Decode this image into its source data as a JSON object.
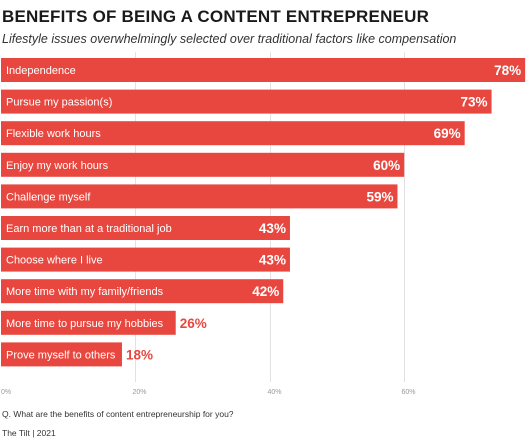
{
  "title": "BENEFITS OF BEING A CONTENT ENTREPRENEUR",
  "subtitle": "Lifestyle issues overwhelmingly selected over traditional factors like compensation",
  "question": "Q. What are the benefits of content entrepreneurship for you?",
  "source": "The Tilt | 2021",
  "colors": {
    "bar": "#e8473f",
    "label_inside": "#ffffff",
    "label_outside": "#e8473f",
    "grid": "#e2e2e2"
  },
  "chart_data": {
    "type": "bar",
    "orientation": "horizontal",
    "categories": [
      "Independence",
      "Pursue my passion(s)",
      "Flexible work hours",
      "Enjoy my work hours",
      "Challenge myself",
      "Earn more than at a traditional job",
      "Choose where I live",
      "More time with my family/friends",
      "More time to pursue my hobbies",
      "Prove myself to others"
    ],
    "values": [
      78,
      73,
      69,
      60,
      59,
      43,
      43,
      42,
      26,
      18
    ],
    "value_labels": [
      "78%",
      "73%",
      "69%",
      "60%",
      "59%",
      "43%",
      "43%",
      "42%",
      "26%",
      "18%"
    ],
    "xlim": [
      0,
      80
    ],
    "xticks": [
      0,
      20,
      40,
      60
    ],
    "xtick_labels": [
      "0%",
      "20%",
      "40%",
      "60%"
    ],
    "grid": true
  }
}
